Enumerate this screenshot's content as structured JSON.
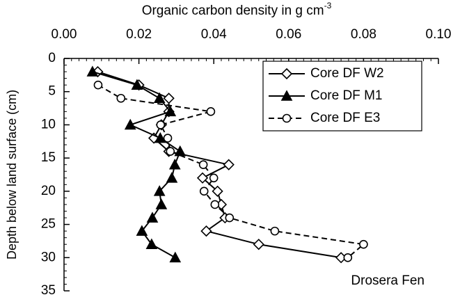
{
  "chart_data": {
    "type": "line",
    "xlabel": "Organic carbon density in g cm",
    "xlabel_superscript": "-3",
    "ylabel": "Depth below land surface (cm)",
    "annotation": "Drosera Fen",
    "xlim": [
      0,
      0.1
    ],
    "xticks": [
      {
        "value": 0,
        "label": "0.00"
      },
      {
        "value": 0.02,
        "label": "0.02"
      },
      {
        "value": 0.04,
        "label": "0.04"
      },
      {
        "value": 0.06,
        "label": "0.06"
      },
      {
        "value": 0.08,
        "label": "0.08"
      },
      {
        "value": 0.1,
        "label": "0.10"
      }
    ],
    "xminor_step": 0.002,
    "ylim": [
      0,
      35
    ],
    "yticks": [
      0,
      5,
      10,
      15,
      20,
      25,
      30,
      35
    ],
    "yminor_step": 1,
    "y_inverted": true,
    "legend": "upper right",
    "series": [
      {
        "name": "Core DF W2",
        "color": "#000000",
        "marker": "diamond",
        "dash": false,
        "x": [
          0.009,
          0.02,
          0.028,
          0.028,
          0.026,
          0.024,
          0.028,
          0.044,
          0.037,
          0.041,
          0.042,
          0.043,
          0.038,
          0.052,
          0.074
        ],
        "values": [
          2,
          4,
          6,
          8,
          10,
          12,
          14,
          16,
          18,
          20,
          22,
          24,
          26,
          28,
          30
        ]
      },
      {
        "name": "Core DF M1",
        "color": "#000000",
        "marker": "triangle",
        "dash": false,
        "x": [
          0.0076,
          0.0195,
          0.0255,
          0.0284,
          0.0177,
          0.0257,
          0.031,
          0.0296,
          0.0288,
          0.0255,
          0.026,
          0.0236,
          0.0208,
          0.0234,
          0.0297
        ],
        "values": [
          2,
          4,
          6,
          8,
          10,
          12,
          14,
          16,
          18,
          20,
          22,
          24,
          26,
          28,
          30
        ]
      },
      {
        "name": "Core DF E3",
        "color": "#000000",
        "marker": "circle",
        "dash": true,
        "x": [
          0.0091,
          0.0152,
          0.0392,
          0.0258,
          0.0277,
          0.0284,
          0.0372,
          0.04,
          0.0374,
          0.0403,
          0.0442,
          0.0563,
          0.08,
          0.0758
        ],
        "values": [
          4,
          6,
          8,
          10,
          12,
          14,
          16,
          18,
          20,
          22,
          24,
          26,
          28,
          30
        ]
      }
    ]
  }
}
